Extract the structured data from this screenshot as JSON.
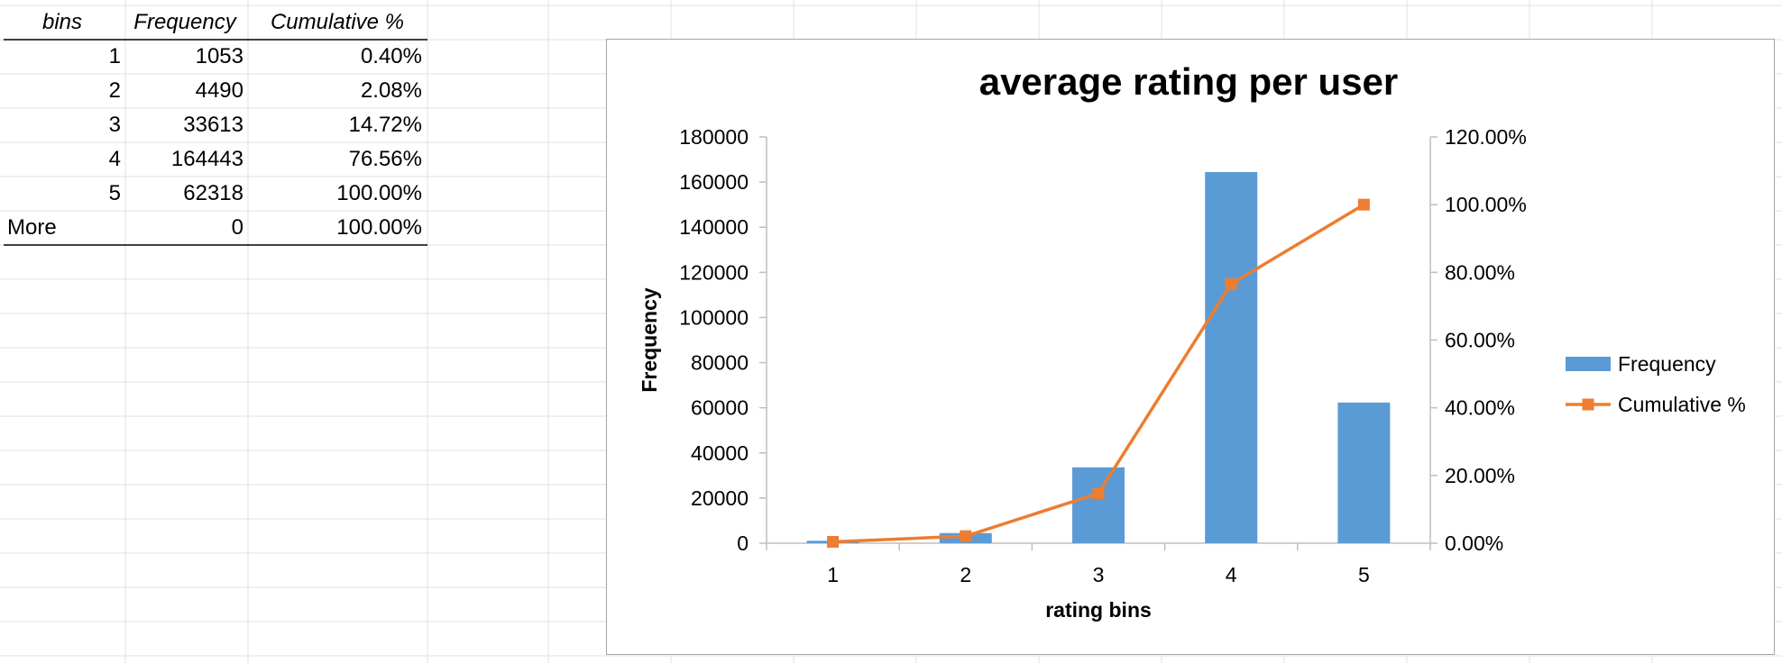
{
  "table": {
    "headers": [
      "bins",
      "Frequency",
      "Cumulative %"
    ],
    "rows": [
      {
        "bin": "1",
        "frequency": "1053",
        "cumulative": "0.40%"
      },
      {
        "bin": "2",
        "frequency": "4490",
        "cumulative": "2.08%"
      },
      {
        "bin": "3",
        "frequency": "33613",
        "cumulative": "14.72%"
      },
      {
        "bin": "4",
        "frequency": "164443",
        "cumulative": "76.56%"
      },
      {
        "bin": "5",
        "frequency": "62318",
        "cumulative": "100.00%"
      },
      {
        "bin": "More",
        "frequency": "0",
        "cumulative": "100.00%"
      }
    ]
  },
  "chart_data": {
    "type": "bar",
    "title": "average rating per user",
    "xlabel": "rating bins",
    "ylabel": "Frequency",
    "categories": [
      "1",
      "2",
      "3",
      "4",
      "5"
    ],
    "series": [
      {
        "name": "Frequency",
        "type": "bar",
        "axis": "left",
        "color": "#5b9bd5",
        "values": [
          1053,
          4490,
          33613,
          164443,
          62318
        ]
      },
      {
        "name": "Cumulative %",
        "type": "line",
        "axis": "right",
        "color": "#ed7d31",
        "values": [
          0.4,
          2.08,
          14.72,
          76.56,
          100.0
        ]
      }
    ],
    "ylim": [
      0,
      180000
    ],
    "yticks": [
      "0",
      "20000",
      "40000",
      "60000",
      "80000",
      "100000",
      "120000",
      "140000",
      "160000",
      "180000"
    ],
    "y2lim": [
      0,
      120
    ],
    "y2ticks": [
      "0.00%",
      "20.00%",
      "40.00%",
      "60.00%",
      "80.00%",
      "100.00%",
      "120.00%"
    ],
    "legend": "right",
    "grid": false
  }
}
